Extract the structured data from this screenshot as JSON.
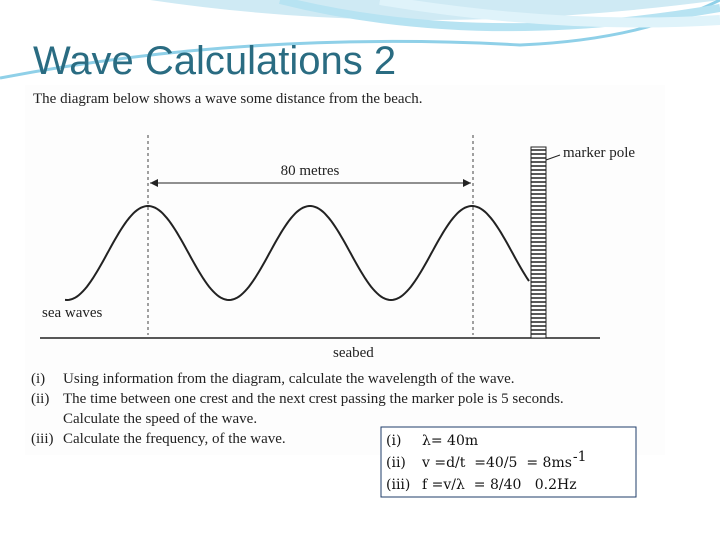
{
  "title": "Wave Calculations 2",
  "intro": "The diagram below shows a wave some distance from the beach.",
  "diagram": {
    "distance_label": "80 metres",
    "pole_label": "marker pole",
    "waves_label": "sea waves",
    "seabed_label": "seabed"
  },
  "questions": [
    {
      "num": "(i)",
      "lines": [
        "Using information from the diagram, calculate the wavelength of the wave."
      ]
    },
    {
      "num": "(ii)",
      "lines": [
        "The time between one crest and the next crest passing the marker pole is 5 seconds.",
        "Calculate the speed of the wave."
      ]
    },
    {
      "num": "(iii)",
      "lines": [
        "Calculate the frequency, of the wave."
      ]
    }
  ],
  "answers": [
    {
      "num": "(i)",
      "text": "λ= 40m"
    },
    {
      "num": "(ii)",
      "text": "v =d/t  =40/5  = 8ms",
      "sup": "-1"
    },
    {
      "num": "(iii)",
      "text": "f =v/λ  = 8/40   0.2Hz"
    }
  ]
}
